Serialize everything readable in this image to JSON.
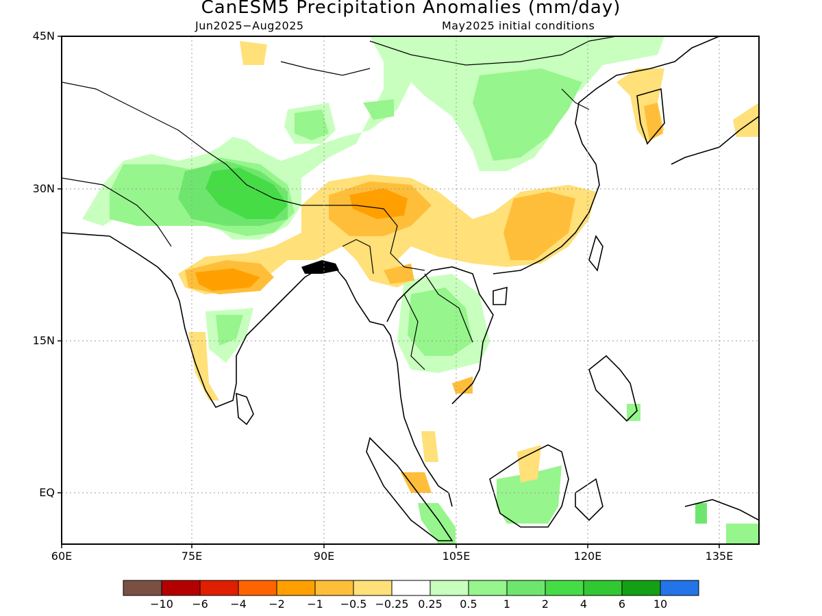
{
  "title": "CanESM5 Precipitation Anomalies (mm/day)",
  "subtitle_left": "Jun2025−Aug2025",
  "subtitle_right": "May2025 initial conditions",
  "axes": {
    "lat_labels": [
      "45N",
      "30N",
      "15N",
      "EQ"
    ],
    "lon_labels": [
      "60E",
      "75E",
      "90E",
      "105E",
      "120E",
      "135E"
    ]
  },
  "colorbar": {
    "colors": [
      "#7a5044",
      "#b40000",
      "#e01e00",
      "#ff6400",
      "#ffa000",
      "#ffbe3a",
      "#ffe079",
      "#ffffff",
      "#c8ffbe",
      "#96f58c",
      "#6ee66e",
      "#46dc46",
      "#32c832",
      "#14a014",
      "#2274e8"
    ],
    "labels": [
      "−10",
      "−6",
      "−4",
      "−2",
      "−1",
      "−0.5",
      "−0.25",
      "0.25",
      "0.5",
      "1",
      "2",
      "4",
      "6",
      "10"
    ]
  }
}
